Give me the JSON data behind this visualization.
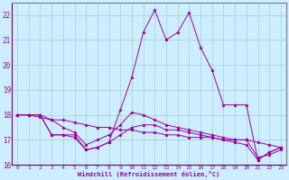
{
  "xlabel": "Windchill (Refroidissement éolien,°C)",
  "background_color": "#cceeff",
  "line_color": "#990099",
  "grid_color": "#aacccc",
  "x": [
    0,
    1,
    2,
    3,
    4,
    5,
    6,
    7,
    8,
    9,
    10,
    11,
    12,
    13,
    14,
    15,
    16,
    17,
    18,
    19,
    20,
    21,
    22,
    23
  ],
  "line1": [
    18.0,
    18.0,
    17.9,
    17.8,
    17.8,
    17.7,
    17.6,
    17.5,
    17.5,
    17.4,
    17.4,
    17.3,
    17.3,
    17.2,
    17.2,
    17.1,
    17.1,
    17.1,
    17.0,
    17.0,
    17.0,
    16.9,
    16.8,
    16.7
  ],
  "line2": [
    18.0,
    18.0,
    18.0,
    17.8,
    17.5,
    17.3,
    16.8,
    17.0,
    17.2,
    17.6,
    18.1,
    18.0,
    17.8,
    17.6,
    17.5,
    17.4,
    17.3,
    17.2,
    17.1,
    17.0,
    17.0,
    16.3,
    16.4,
    16.6
  ],
  "line3": [
    18.0,
    18.0,
    18.0,
    17.2,
    17.2,
    17.2,
    16.6,
    16.7,
    16.9,
    18.2,
    19.5,
    21.3,
    22.2,
    21.0,
    21.3,
    22.1,
    20.7,
    19.8,
    18.4,
    18.4,
    18.4,
    16.2,
    16.5,
    16.7
  ],
  "line4": [
    18.0,
    18.0,
    18.0,
    17.2,
    17.2,
    17.1,
    16.6,
    16.7,
    16.9,
    17.2,
    17.5,
    17.6,
    17.6,
    17.4,
    17.4,
    17.3,
    17.2,
    17.1,
    17.0,
    16.9,
    16.8,
    16.2,
    16.5,
    16.7
  ],
  "ylim": [
    16.0,
    22.5
  ],
  "yticks": [
    16,
    17,
    18,
    19,
    20,
    21,
    22
  ],
  "xlim": [
    -0.5,
    23.5
  ]
}
